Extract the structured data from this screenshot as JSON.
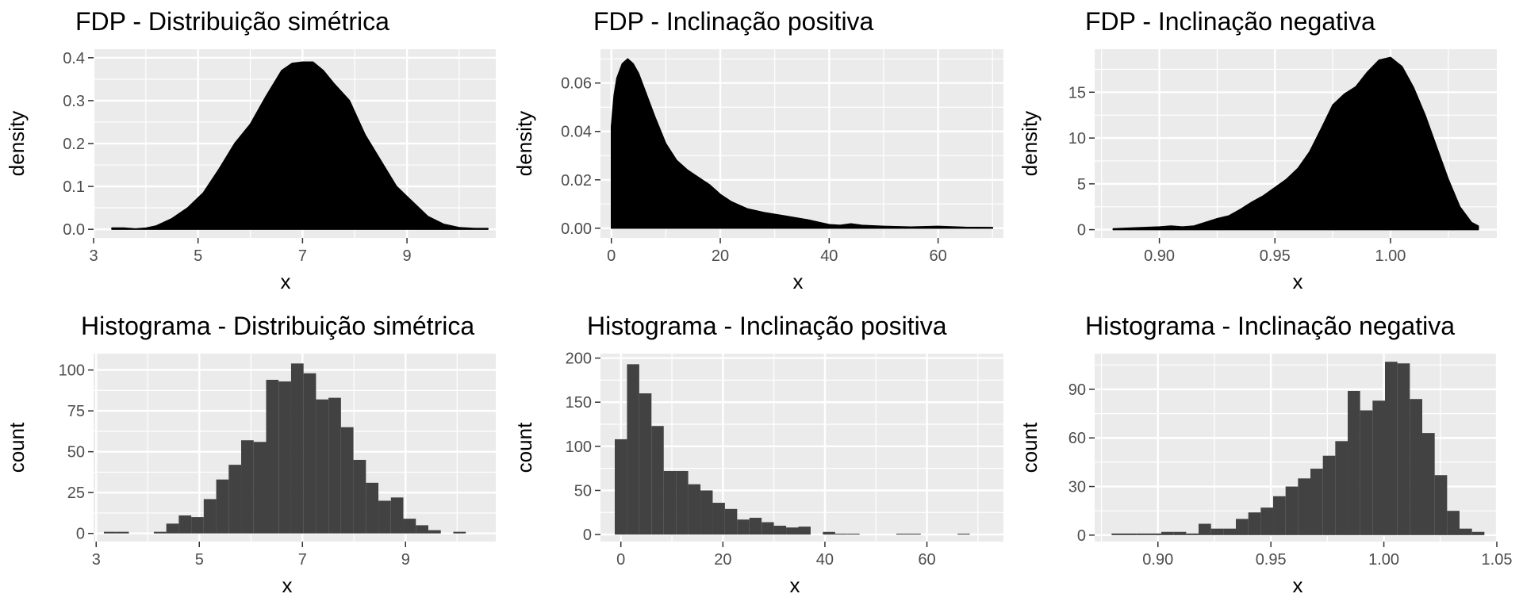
{
  "colors": {
    "panel_bg": "#EBEBEB",
    "grid": "#FFFFFF",
    "density_fill": "#000000",
    "bar_fill": "#424242",
    "tick_text": "#4D4D4D"
  },
  "chart_data": [
    {
      "type": "area",
      "title": "FDP - Distribuição simétrica",
      "xlabel": "x",
      "ylabel": "density",
      "xlim": [
        3,
        10.7
      ],
      "ylim": [
        -0.02,
        0.42
      ],
      "x_ticks": [
        3,
        5,
        7,
        9
      ],
      "x_tick_labels": [
        "3",
        "5",
        "7",
        "9"
      ],
      "y_ticks": [
        0,
        0.1,
        0.2,
        0.3,
        0.4
      ],
      "y_tick_labels": [
        "0.0",
        "0.1",
        "0.2",
        "0.3",
        "0.4"
      ],
      "x": [
        3.35,
        3.6,
        3.8,
        4.0,
        4.2,
        4.5,
        4.8,
        5.1,
        5.4,
        5.7,
        6.0,
        6.3,
        6.6,
        6.8,
        7.0,
        7.2,
        7.4,
        7.6,
        7.9,
        8.2,
        8.5,
        8.8,
        9.1,
        9.4,
        9.7,
        10.0,
        10.3,
        10.55
      ],
      "y": [
        0.003,
        0.003,
        0.001,
        0.003,
        0.008,
        0.025,
        0.05,
        0.085,
        0.14,
        0.2,
        0.245,
        0.31,
        0.37,
        0.387,
        0.39,
        0.39,
        0.37,
        0.34,
        0.3,
        0.22,
        0.16,
        0.1,
        0.065,
        0.03,
        0.012,
        0.004,
        0.002,
        0.002
      ]
    },
    {
      "type": "area",
      "title": "FDP - Inclinação positiva",
      "xlabel": "x",
      "ylabel": "density",
      "xlim": [
        -2,
        72
      ],
      "ylim": [
        -0.004,
        0.074
      ],
      "x_ticks": [
        0,
        20,
        40,
        60
      ],
      "x_tick_labels": [
        "0",
        "20",
        "40",
        "60"
      ],
      "y_ticks": [
        0,
        0.02,
        0.04,
        0.06
      ],
      "y_tick_labels": [
        "0.00",
        "0.02",
        "0.04",
        "0.06"
      ],
      "x": [
        0,
        0.5,
        1,
        2,
        3,
        4,
        5,
        6,
        8,
        10,
        12,
        14,
        16,
        18,
        20,
        22,
        25,
        28,
        32,
        36,
        40,
        42,
        44,
        46,
        50,
        55,
        60,
        65,
        70
      ],
      "y": [
        0.042,
        0.055,
        0.062,
        0.068,
        0.07,
        0.068,
        0.064,
        0.058,
        0.046,
        0.035,
        0.028,
        0.024,
        0.021,
        0.018,
        0.014,
        0.011,
        0.008,
        0.0065,
        0.005,
        0.0035,
        0.0015,
        0.0012,
        0.0018,
        0.0012,
        0.0008,
        0.0005,
        0.0008,
        0.0004,
        0.0003
      ]
    },
    {
      "type": "area",
      "title": "FDP - Inclinação negativa",
      "xlabel": "x",
      "ylabel": "density",
      "xlim": [
        0.872,
        1.046
      ],
      "ylim": [
        -0.9,
        19.7
      ],
      "x_ticks": [
        0.9,
        0.95,
        1.0
      ],
      "x_tick_labels": [
        "0.90",
        "0.95",
        "1.00"
      ],
      "y_ticks": [
        0,
        5,
        10,
        15
      ],
      "y_tick_labels": [
        "0",
        "5",
        "10",
        "15"
      ],
      "x": [
        0.88,
        0.89,
        0.9,
        0.905,
        0.91,
        0.915,
        0.92,
        0.925,
        0.93,
        0.935,
        0.94,
        0.945,
        0.95,
        0.955,
        0.96,
        0.965,
        0.97,
        0.975,
        0.98,
        0.985,
        0.99,
        0.995,
        1.0,
        1.005,
        1.01,
        1.015,
        1.02,
        1.025,
        1.03,
        1.035,
        1.038
      ],
      "y": [
        0.1,
        0.2,
        0.3,
        0.4,
        0.3,
        0.4,
        0.8,
        1.2,
        1.5,
        2.2,
        3.0,
        3.7,
        4.6,
        5.5,
        6.7,
        8.5,
        11.0,
        13.6,
        14.8,
        15.6,
        17.2,
        18.5,
        18.8,
        17.8,
        15.5,
        12.5,
        9.0,
        5.5,
        2.5,
        0.8,
        0.4
      ]
    },
    {
      "type": "bar",
      "title": "Histograma - Distribuição simétrica",
      "xlabel": "x",
      "ylabel": "count",
      "xlim": [
        2.95,
        10.75
      ],
      "ylim": [
        -5,
        110
      ],
      "x_ticks": [
        3,
        5,
        7,
        9
      ],
      "x_tick_labels": [
        "3",
        "5",
        "7",
        "9"
      ],
      "y_ticks": [
        0,
        25,
        50,
        75,
        100
      ],
      "y_tick_labels": [
        "0",
        "25",
        "50",
        "75",
        "100"
      ],
      "bin_start": 3.15,
      "bin_width": 0.242,
      "counts": [
        1,
        1,
        0,
        0,
        1,
        6,
        11,
        10,
        21,
        33,
        42,
        57,
        56,
        94,
        93,
        104,
        98,
        82,
        83,
        65,
        45,
        31,
        20,
        22,
        9,
        5,
        2,
        0,
        1
      ]
    },
    {
      "type": "bar",
      "title": "Histograma - Inclinação positiva",
      "xlabel": "x",
      "ylabel": "count",
      "xlim": [
        -4,
        75
      ],
      "ylim": [
        -8,
        205
      ],
      "x_ticks": [
        0,
        20,
        40,
        60
      ],
      "x_tick_labels": [
        "0",
        "20",
        "40",
        "60"
      ],
      "y_ticks": [
        0,
        50,
        100,
        150,
        200
      ],
      "y_tick_labels": [
        "0",
        "50",
        "100",
        "150",
        "200"
      ],
      "bin_start": -1.2,
      "bin_width": 2.4,
      "counts": [
        108,
        193,
        160,
        123,
        72,
        72,
        57,
        50,
        36,
        29,
        17,
        19,
        14,
        10,
        8,
        9,
        0,
        3,
        1,
        1,
        0,
        0,
        0,
        1,
        1,
        0,
        0,
        0,
        1
      ]
    },
    {
      "type": "bar",
      "title": "Histograma - Inclinação negativa",
      "xlabel": "x",
      "ylabel": "count",
      "xlim": [
        0.872,
        1.05
      ],
      "ylim": [
        -4,
        112
      ],
      "x_ticks": [
        0.9,
        0.95,
        1.0,
        1.05
      ],
      "x_tick_labels": [
        "0.90",
        "0.95",
        "1.00",
        "1.05"
      ],
      "y_ticks": [
        0,
        30,
        60,
        90
      ],
      "y_tick_labels": [
        "0",
        "30",
        "60",
        "90"
      ],
      "bin_start": 0.8795,
      "bin_width": 0.0055,
      "counts": [
        1,
        1,
        1,
        1,
        2,
        2,
        1,
        7,
        4,
        4,
        10,
        14,
        17,
        24,
        30,
        35,
        41,
        49,
        58,
        89,
        77,
        83,
        107,
        106,
        84,
        63,
        37,
        15,
        4,
        2
      ]
    }
  ]
}
